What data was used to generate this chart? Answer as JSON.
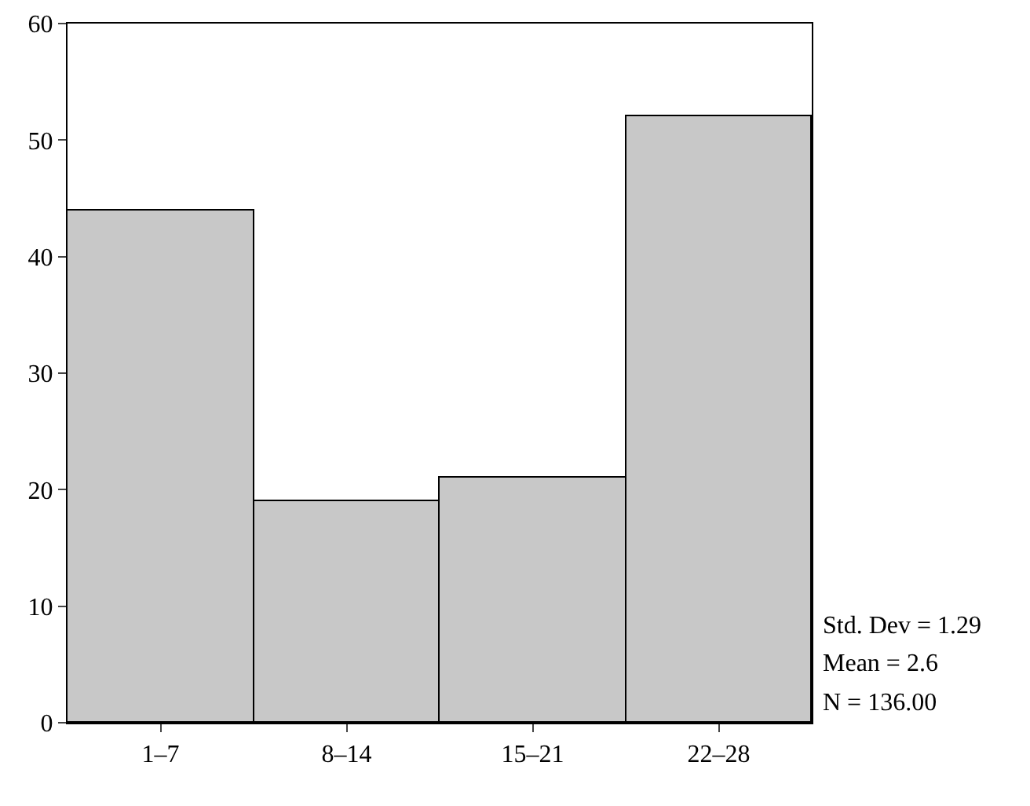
{
  "chart_data": {
    "type": "bar",
    "categories": [
      "1–7",
      "8–14",
      "15–21",
      "22–28"
    ],
    "values": [
      44,
      19,
      21,
      52
    ],
    "color": "#c8c8c8",
    "ylim": [
      0,
      60
    ],
    "yticks": [
      0,
      10,
      20,
      30,
      40,
      50,
      60
    ],
    "grid": false,
    "annotations": [
      "Std. Dev = 1.29",
      "Mean = 2.6",
      "N = 136.00"
    ]
  }
}
